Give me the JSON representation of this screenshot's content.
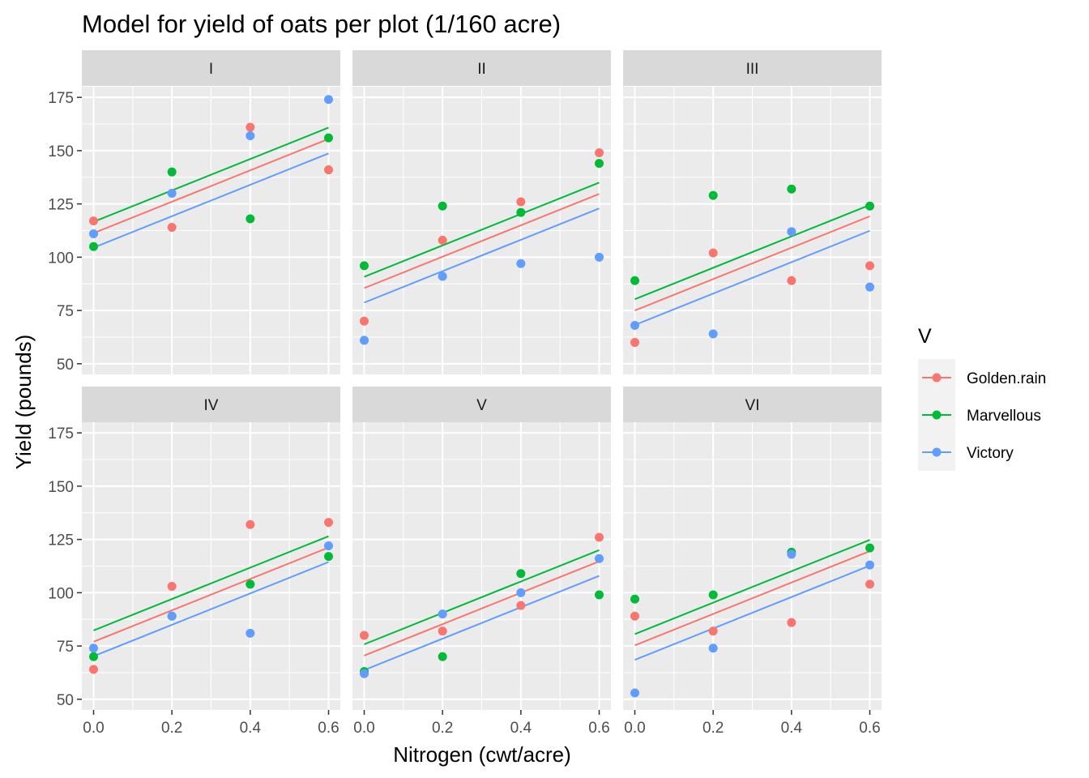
{
  "chart_data": {
    "type": "scatter",
    "title": "Model for yield of oats per plot (1/160 acre)",
    "xlabel": "Nitrogen (cwt/acre)",
    "ylabel": "Yield (pounds)",
    "xlim": [
      -0.03,
      0.63
    ],
    "ylim": [
      45,
      180
    ],
    "x_ticks": [
      "0.0",
      "0.2",
      "0.4",
      "0.6"
    ],
    "y_ticks": [
      "50",
      "75",
      "100",
      "125",
      "150",
      "175"
    ],
    "x_tick_values": [
      0,
      0.2,
      0.4,
      0.6
    ],
    "y_tick_values": [
      50,
      75,
      100,
      125,
      150,
      175
    ],
    "x_minor_values": [
      0.1,
      0.3,
      0.5
    ],
    "y_minor_values": [
      62.5,
      87.5,
      112.5,
      137.5,
      162.5
    ],
    "grid": true,
    "facet_layout": "2 rows x 3 columns",
    "legend": {
      "title": "V",
      "position": "right",
      "entries": [
        "Golden.rain",
        "Marvellous",
        "Victory"
      ]
    },
    "colors": {
      "Golden.rain": "#F8766D",
      "Marvellous": "#00BA38",
      "Victory": "#619CFF",
      "panel_background": "#EBEBEB",
      "strip_background": "#D9D9D9",
      "legend_key_background": "#F2F2F2"
    },
    "slope": 73.67,
    "panels": [
      {
        "label": "I",
        "intercepts": {
          "Golden.rain": 111.3,
          "Marvellous": 116.6,
          "Victory": 104.5
        },
        "points": [
          {
            "series": "Golden.rain",
            "x": 0.0,
            "y": 117
          },
          {
            "series": "Golden.rain",
            "x": 0.2,
            "y": 114
          },
          {
            "series": "Golden.rain",
            "x": 0.4,
            "y": 161
          },
          {
            "series": "Golden.rain",
            "x": 0.6,
            "y": 141
          },
          {
            "series": "Marvellous",
            "x": 0.0,
            "y": 105
          },
          {
            "series": "Marvellous",
            "x": 0.2,
            "y": 140
          },
          {
            "series": "Marvellous",
            "x": 0.4,
            "y": 118
          },
          {
            "series": "Marvellous",
            "x": 0.6,
            "y": 156
          },
          {
            "series": "Victory",
            "x": 0.0,
            "y": 111
          },
          {
            "series": "Victory",
            "x": 0.2,
            "y": 130
          },
          {
            "series": "Victory",
            "x": 0.4,
            "y": 157
          },
          {
            "series": "Victory",
            "x": 0.6,
            "y": 174
          }
        ]
      },
      {
        "label": "II",
        "intercepts": {
          "Golden.rain": 85.5,
          "Marvellous": 90.8,
          "Victory": 78.7
        },
        "points": [
          {
            "series": "Golden.rain",
            "x": 0.0,
            "y": 70
          },
          {
            "series": "Golden.rain",
            "x": 0.2,
            "y": 108
          },
          {
            "series": "Golden.rain",
            "x": 0.4,
            "y": 126
          },
          {
            "series": "Golden.rain",
            "x": 0.6,
            "y": 149
          },
          {
            "series": "Marvellous",
            "x": 0.0,
            "y": 96
          },
          {
            "series": "Marvellous",
            "x": 0.2,
            "y": 124
          },
          {
            "series": "Marvellous",
            "x": 0.4,
            "y": 121
          },
          {
            "series": "Marvellous",
            "x": 0.6,
            "y": 144
          },
          {
            "series": "Victory",
            "x": 0.0,
            "y": 61
          },
          {
            "series": "Victory",
            "x": 0.2,
            "y": 91
          },
          {
            "series": "Victory",
            "x": 0.4,
            "y": 97
          },
          {
            "series": "Victory",
            "x": 0.6,
            "y": 100
          }
        ]
      },
      {
        "label": "III",
        "intercepts": {
          "Golden.rain": 75.0,
          "Marvellous": 80.3,
          "Victory": 68.2
        },
        "points": [
          {
            "series": "Golden.rain",
            "x": 0.0,
            "y": 60
          },
          {
            "series": "Golden.rain",
            "x": 0.2,
            "y": 102
          },
          {
            "series": "Golden.rain",
            "x": 0.4,
            "y": 89
          },
          {
            "series": "Golden.rain",
            "x": 0.6,
            "y": 96
          },
          {
            "series": "Marvellous",
            "x": 0.0,
            "y": 89
          },
          {
            "series": "Marvellous",
            "x": 0.2,
            "y": 129
          },
          {
            "series": "Marvellous",
            "x": 0.4,
            "y": 132
          },
          {
            "series": "Marvellous",
            "x": 0.6,
            "y": 124
          },
          {
            "series": "Victory",
            "x": 0.0,
            "y": 68
          },
          {
            "series": "Victory",
            "x": 0.2,
            "y": 64
          },
          {
            "series": "Victory",
            "x": 0.4,
            "y": 112
          },
          {
            "series": "Victory",
            "x": 0.6,
            "y": 86
          }
        ]
      },
      {
        "label": "IV",
        "intercepts": {
          "Golden.rain": 77.0,
          "Marvellous": 82.3,
          "Victory": 70.2
        },
        "points": [
          {
            "series": "Golden.rain",
            "x": 0.0,
            "y": 64
          },
          {
            "series": "Golden.rain",
            "x": 0.2,
            "y": 103
          },
          {
            "series": "Golden.rain",
            "x": 0.4,
            "y": 132
          },
          {
            "series": "Golden.rain",
            "x": 0.6,
            "y": 133
          },
          {
            "series": "Marvellous",
            "x": 0.0,
            "y": 70
          },
          {
            "series": "Marvellous",
            "x": 0.2,
            "y": 89
          },
          {
            "series": "Marvellous",
            "x": 0.4,
            "y": 104
          },
          {
            "series": "Marvellous",
            "x": 0.6,
            "y": 117
          },
          {
            "series": "Victory",
            "x": 0.0,
            "y": 74
          },
          {
            "series": "Victory",
            "x": 0.2,
            "y": 89
          },
          {
            "series": "Victory",
            "x": 0.4,
            "y": 81
          },
          {
            "series": "Victory",
            "x": 0.6,
            "y": 122
          }
        ]
      },
      {
        "label": "V",
        "intercepts": {
          "Golden.rain": 70.5,
          "Marvellous": 75.8,
          "Victory": 63.7
        },
        "points": [
          {
            "series": "Golden.rain",
            "x": 0.0,
            "y": 80
          },
          {
            "series": "Golden.rain",
            "x": 0.2,
            "y": 82
          },
          {
            "series": "Golden.rain",
            "x": 0.4,
            "y": 94
          },
          {
            "series": "Golden.rain",
            "x": 0.6,
            "y": 126
          },
          {
            "series": "Marvellous",
            "x": 0.0,
            "y": 63
          },
          {
            "series": "Marvellous",
            "x": 0.2,
            "y": 70
          },
          {
            "series": "Marvellous",
            "x": 0.4,
            "y": 109
          },
          {
            "series": "Marvellous",
            "x": 0.6,
            "y": 99
          },
          {
            "series": "Victory",
            "x": 0.0,
            "y": 62
          },
          {
            "series": "Victory",
            "x": 0.2,
            "y": 90
          },
          {
            "series": "Victory",
            "x": 0.4,
            "y": 100
          },
          {
            "series": "Victory",
            "x": 0.6,
            "y": 116
          }
        ]
      },
      {
        "label": "VI",
        "intercepts": {
          "Golden.rain": 75.3,
          "Marvellous": 80.6,
          "Victory": 68.5
        },
        "points": [
          {
            "series": "Golden.rain",
            "x": 0.0,
            "y": 89
          },
          {
            "series": "Golden.rain",
            "x": 0.2,
            "y": 82
          },
          {
            "series": "Golden.rain",
            "x": 0.4,
            "y": 86
          },
          {
            "series": "Golden.rain",
            "x": 0.6,
            "y": 104
          },
          {
            "series": "Marvellous",
            "x": 0.0,
            "y": 97
          },
          {
            "series": "Marvellous",
            "x": 0.2,
            "y": 99
          },
          {
            "series": "Marvellous",
            "x": 0.4,
            "y": 119
          },
          {
            "series": "Marvellous",
            "x": 0.6,
            "y": 121
          },
          {
            "series": "Victory",
            "x": 0.0,
            "y": 53
          },
          {
            "series": "Victory",
            "x": 0.2,
            "y": 74
          },
          {
            "series": "Victory",
            "x": 0.4,
            "y": 118
          },
          {
            "series": "Victory",
            "x": 0.6,
            "y": 113
          }
        ]
      }
    ]
  }
}
